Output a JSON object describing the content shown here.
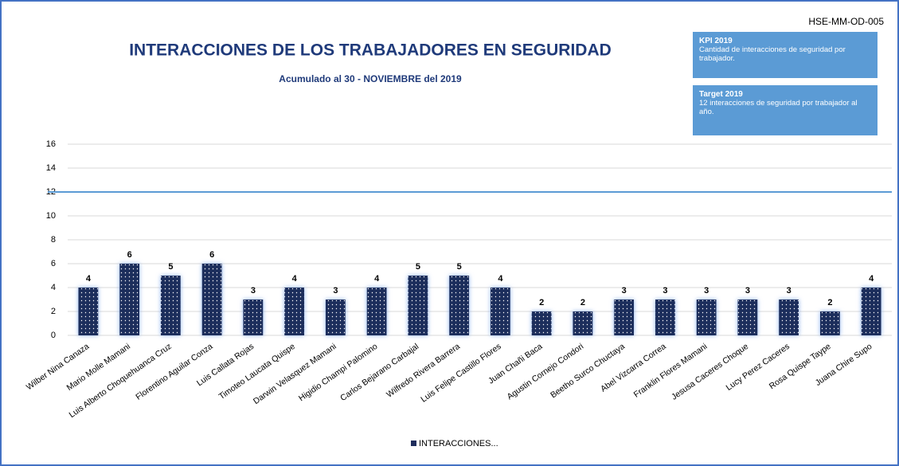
{
  "code": "HSE-MM-OD-005",
  "annotations": [
    {
      "title": "KPI 2019",
      "text": "Cantidad de interacciones de seguridad por trabajador."
    },
    {
      "title": "Target 2019",
      "text": "12 interacciones de seguridad por trabajador al año."
    }
  ],
  "chart_data": {
    "type": "bar",
    "title": "INTERACCIONES DE LOS TRABAJADORES EN SEGURIDAD",
    "subtitle": "Acumulado al 30 - NOVIEMBRE del 2019",
    "categories": [
      "Wilber Nina Canaza",
      "Mario Molle Mamani",
      "Luis Alberto Choquehuanca Cruz",
      "Florentino Aguilar Conza",
      "Luis Callata Rojas",
      "Timoteo Laucata Quispe",
      "Darwin Velasquez Mamani",
      "Higidio Champi Palomino",
      "Carlos Bejarano Carbajal",
      "Wilfredo Rivera Barrera",
      "Luis Felipe Castillo Flores",
      "Juan Chañi Baca",
      "Agustin Cornejo Condori",
      "Beetho Surco Chuctaya",
      "Abel Vizcarra Correa",
      "Franklin Flores Mamani",
      "Jesusa Caceres Choque",
      "Lucy Perez Caceres",
      "Rosa Quispe Taype",
      "Juana Chire Supo"
    ],
    "series": [
      {
        "name": "INTERACCIONES...",
        "color": "#1f2d5c",
        "values": [
          4,
          6,
          5,
          6,
          3,
          4,
          3,
          4,
          5,
          5,
          4,
          2,
          2,
          3,
          3,
          3,
          3,
          3,
          2,
          4
        ]
      }
    ],
    "target": 12,
    "target_color": "#5b9bd5",
    "ylim": [
      0,
      16
    ],
    "yticks": [
      0,
      2,
      4,
      6,
      8,
      10,
      12,
      14,
      16
    ],
    "grid": true,
    "legend": "bottom"
  }
}
